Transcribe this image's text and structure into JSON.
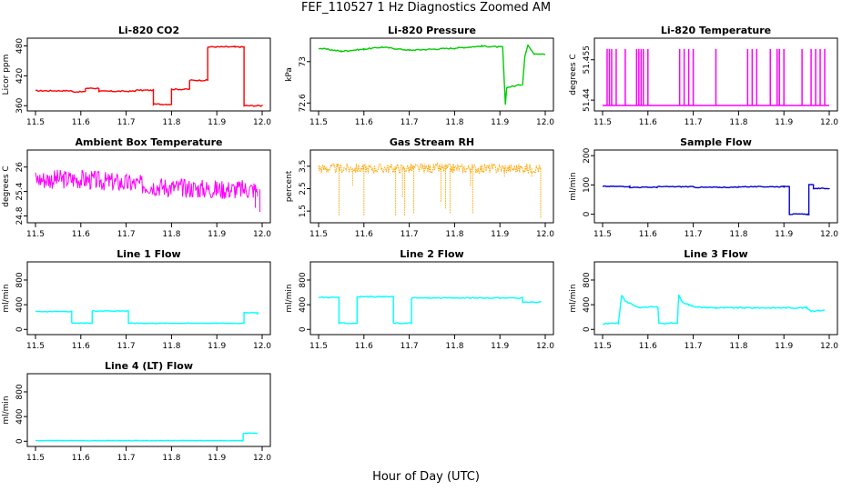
{
  "figure": {
    "title": "FEF_110527  1 Hz Diagnostics Zoomed AM",
    "xlabel": "Hour of Day (UTC)"
  },
  "chart_data": [
    {
      "type": "line",
      "title": "Li-820 CO2",
      "ylabel": "Licor ppm",
      "color": "#ff0000",
      "xlim": [
        11.5,
        12.0
      ],
      "ylim": [
        355,
        490
      ],
      "yticks": [
        360,
        420,
        480
      ],
      "xticks": [
        11.5,
        11.6,
        11.7,
        11.8,
        11.9,
        12.0
      ],
      "series": [
        {
          "style": "step",
          "noise": 1.2,
          "x": [
            11.5,
            11.58,
            11.61,
            11.64,
            11.72,
            11.76,
            11.8,
            11.84,
            11.88,
            11.94,
            11.96,
            12.0
          ],
          "values": [
            390,
            388,
            395,
            389,
            391,
            363,
            393,
            411,
            478,
            478,
            360,
            360
          ]
        }
      ]
    },
    {
      "type": "line",
      "title": "Li-820 Pressure",
      "ylabel": "kPa",
      "color": "#00cc00",
      "xlim": [
        11.5,
        12.0
      ],
      "ylim": [
        72.55,
        73.2
      ],
      "yticks": [
        72.6,
        73.0
      ],
      "xticks": [
        11.5,
        11.6,
        11.7,
        11.8,
        11.9,
        12.0
      ],
      "series": [
        {
          "style": "line",
          "noise": 0.006,
          "x": [
            11.5,
            11.55,
            11.6,
            11.64,
            11.7,
            11.8,
            11.86,
            11.906,
            11.912,
            11.915,
            11.95,
            11.955,
            11.962,
            11.975,
            12.0
          ],
          "values": [
            73.13,
            73.1,
            73.12,
            73.14,
            73.11,
            73.13,
            73.15,
            73.14,
            72.58,
            72.75,
            72.78,
            73.05,
            73.16,
            73.08,
            73.07
          ]
        }
      ]
    },
    {
      "type": "line",
      "title": "Li-820 Temperature",
      "ylabel": "degrees C",
      "color": "#ff00ff",
      "xlim": [
        11.5,
        12.0
      ],
      "ylim": [
        51.437,
        51.462
      ],
      "yticks": [
        51.44,
        51.455
      ],
      "xticks": [
        11.5,
        11.6,
        11.7,
        11.8,
        11.9,
        12.0
      ],
      "series": [
        {
          "style": "spikes",
          "base": 51.438,
          "peak": 51.459,
          "x": [
            11.51,
            11.515,
            11.52,
            11.53,
            11.55,
            11.575,
            11.58,
            11.585,
            11.59,
            11.6,
            11.67,
            11.68,
            11.69,
            11.7,
            11.75,
            11.82,
            11.83,
            11.84,
            11.87,
            11.885,
            11.89,
            11.9,
            11.94,
            11.96,
            11.97,
            11.98,
            11.99
          ]
        }
      ]
    },
    {
      "type": "line",
      "title": "Ambient Box Temperature",
      "ylabel": "degrees C",
      "color": "#ff00ff",
      "xlim": [
        11.5,
        12.0
      ],
      "ylim": [
        24.7,
        26.35
      ],
      "yticks": [
        24.8,
        25.4,
        26.0
      ],
      "xticks": [
        11.5,
        11.6,
        11.7,
        11.8,
        11.9,
        12.0
      ],
      "series": [
        {
          "style": "band",
          "halfwidth": 0.24,
          "mean": [
            25.7,
            25.7,
            25.6,
            25.5,
            25.45,
            25.45
          ],
          "x": [
            11.5,
            11.6,
            11.7,
            11.8,
            11.9,
            11.99
          ],
          "dips": [
            [
              11.995,
              24.9
            ],
            [
              11.985,
              25.0
            ]
          ]
        }
      ]
    },
    {
      "type": "line",
      "title": "Gas Stream RH",
      "ylabel": "percent",
      "color": "#ffa500",
      "xlim": [
        11.5,
        12.0
      ],
      "ylim": [
        1.1,
        4.1
      ],
      "yticks": [
        1.5,
        2.5,
        3.5
      ],
      "xticks": [
        11.5,
        11.6,
        11.7,
        11.8,
        11.9,
        12.0
      ],
      "series": [
        {
          "style": "band",
          "halfwidth": 0.22,
          "mean": [
            3.4,
            3.4,
            3.4,
            3.4,
            3.4,
            3.4
          ],
          "x": [
            11.5,
            11.6,
            11.7,
            11.8,
            11.9,
            11.99
          ],
          "dips": [
            [
              11.545,
              1.3
            ],
            [
              11.575,
              2.6
            ],
            [
              11.6,
              1.3
            ],
            [
              11.67,
              1.3
            ],
            [
              11.685,
              2.1
            ],
            [
              11.69,
              1.3
            ],
            [
              11.71,
              1.4
            ],
            [
              11.77,
              1.9
            ],
            [
              11.78,
              1.6
            ],
            [
              11.79,
              1.4
            ],
            [
              11.835,
              2.6
            ],
            [
              11.84,
              1.4
            ],
            [
              11.91,
              3.0
            ],
            [
              11.97,
              3.0
            ],
            [
              11.99,
              1.2
            ]
          ]
        }
      ]
    },
    {
      "type": "line",
      "title": "Sample Flow",
      "ylabel": "ml/min",
      "color": "#0000cc",
      "xlim": [
        11.5,
        12.0
      ],
      "ylim": [
        -20,
        210
      ],
      "yticks": [
        0,
        100,
        200
      ],
      "xticks": [
        11.5,
        11.6,
        11.7,
        11.8,
        11.9,
        12.0
      ],
      "series": [
        {
          "style": "step",
          "noise": 1.5,
          "x": [
            11.5,
            11.56,
            11.62,
            11.7,
            11.8,
            11.9,
            11.912,
            11.952,
            11.955,
            11.965,
            12.0
          ],
          "values": [
            95,
            92,
            94,
            92,
            94,
            96,
            0,
            0,
            100,
            88,
            86
          ]
        }
      ]
    },
    {
      "type": "line",
      "title": "Line 1 Flow",
      "ylabel": "ml/min",
      "color": "#00ffff",
      "xlim": [
        11.5,
        12.0
      ],
      "ylim": [
        -40,
        1050
      ],
      "yticks": [
        0,
        400,
        800
      ],
      "xticks": [
        11.5,
        11.6,
        11.7,
        11.8,
        11.9,
        12.0
      ],
      "series": [
        {
          "style": "step",
          "noise": 6,
          "x": [
            11.5,
            11.58,
            11.625,
            11.705,
            11.95,
            11.96,
            11.99
          ],
          "values": [
            290,
            100,
            300,
            100,
            100,
            270,
            240
          ]
        }
      ]
    },
    {
      "type": "line",
      "title": "Line 2 Flow",
      "ylabel": "ml/min",
      "color": "#00ffff",
      "xlim": [
        11.5,
        12.0
      ],
      "ylim": [
        -40,
        1050
      ],
      "yticks": [
        0,
        400,
        800
      ],
      "xticks": [
        11.5,
        11.6,
        11.7,
        11.8,
        11.9,
        12.0
      ],
      "series": [
        {
          "style": "step",
          "noise": 8,
          "x": [
            11.5,
            11.545,
            11.585,
            11.665,
            11.705,
            11.95,
            11.99
          ],
          "values": [
            520,
            100,
            530,
            100,
            510,
            440,
            440
          ]
        }
      ]
    },
    {
      "type": "line",
      "title": "Line 3 Flow",
      "ylabel": "ml/min",
      "color": "#00ffff",
      "xlim": [
        11.5,
        12.0
      ],
      "ylim": [
        -40,
        1050
      ],
      "yticks": [
        0,
        400,
        800
      ],
      "xticks": [
        11.5,
        11.6,
        11.7,
        11.8,
        11.9,
        12.0
      ],
      "series": [
        {
          "style": "line",
          "noise": 10,
          "x": [
            11.5,
            11.535,
            11.542,
            11.55,
            11.56,
            11.58,
            11.622,
            11.624,
            11.665,
            11.668,
            11.675,
            11.69,
            11.71,
            11.75,
            11.95,
            11.96,
            11.99
          ],
          "values": [
            90,
            100,
            560,
            460,
            420,
            360,
            360,
            100,
            100,
            560,
            450,
            400,
            360,
            350,
            350,
            300,
            310
          ]
        }
      ]
    },
    {
      "type": "line",
      "title": "Line 4 (LT) Flow",
      "ylabel": "ml/min",
      "color": "#00ffff",
      "xlim": [
        11.5,
        12.0
      ],
      "ylim": [
        -40,
        1050
      ],
      "yticks": [
        0,
        400,
        800
      ],
      "xticks": [
        11.5,
        11.6,
        11.7,
        11.8,
        11.9,
        12.0
      ],
      "series": [
        {
          "style": "step",
          "noise": 4,
          "x": [
            11.5,
            11.955,
            11.958,
            11.99
          ],
          "values": [
            10,
            10,
            130,
            130
          ]
        }
      ]
    }
  ]
}
